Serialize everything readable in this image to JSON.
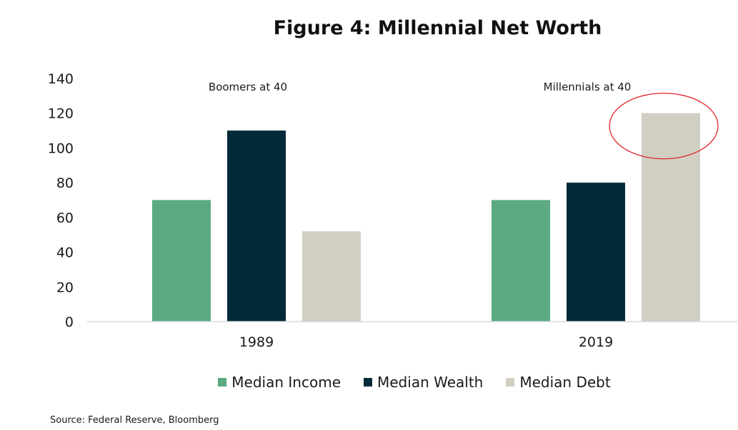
{
  "chart_data": {
    "type": "bar",
    "title": "Figure 4: Millennial Net Worth",
    "categories": [
      "1989",
      "2019"
    ],
    "category_annotations": [
      "Boomers at 40",
      "Millennials at 40"
    ],
    "series": [
      {
        "name": "Median Income",
        "values": [
          70,
          70
        ],
        "color": "#5BAA82"
      },
      {
        "name": "Median Wealth",
        "values": [
          110,
          80
        ],
        "color": "#022A39"
      },
      {
        "name": "Median Debt",
        "values": [
          52,
          120
        ],
        "color": "#D1CFC3"
      }
    ],
    "ylim": [
      0,
      140
    ],
    "yticks": [
      "0",
      "20",
      "40",
      "60",
      "80",
      "100",
      "120",
      "140"
    ],
    "xlabel": "",
    "ylabel": "",
    "grid": false,
    "legend_position": "bottom",
    "highlight": {
      "category": "2019",
      "series": "Median Debt",
      "shape": "ellipse",
      "color": "#E0262B"
    }
  },
  "source": "Source: Federal Reserve, Bloomberg"
}
